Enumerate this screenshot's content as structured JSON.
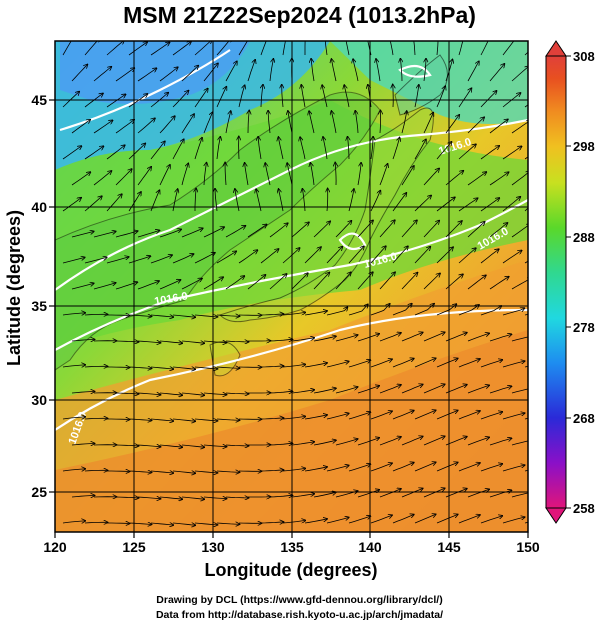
{
  "title": "MSM 21Z22Sep2024 (1013.2hPa)",
  "map": {
    "x_axis": {
      "label": "Longitude (degrees)",
      "ticks": [
        "120",
        "125",
        "130",
        "135",
        "140",
        "145",
        "150"
      ]
    },
    "y_axis": {
      "label": "Latitude  (degrees)",
      "ticks": [
        "25",
        "30",
        "35",
        "40",
        "45"
      ]
    },
    "contour_labels": [
      "1016.0",
      "1016.0",
      "1016.0",
      "1016.0",
      "1016.0"
    ],
    "colorbar": {
      "ticks": [
        "308",
        "298",
        "288",
        "278",
        "268",
        "258"
      ],
      "colors": [
        "#e0157a",
        "#8a10c8",
        "#2a2ad8",
        "#1e8cf0",
        "#20d8e0",
        "#30d890",
        "#5ad82a",
        "#c8e020",
        "#f0c020",
        "#f08a20",
        "#e85020",
        "#e0403a"
      ]
    }
  },
  "credits": {
    "line1": "Drawing by DCL (https://www.gfd-dennou.org/library/dcl/)",
    "line2": "Data from http://database.rish.kyoto-u.ac.jp/arch/jmadata/"
  }
}
